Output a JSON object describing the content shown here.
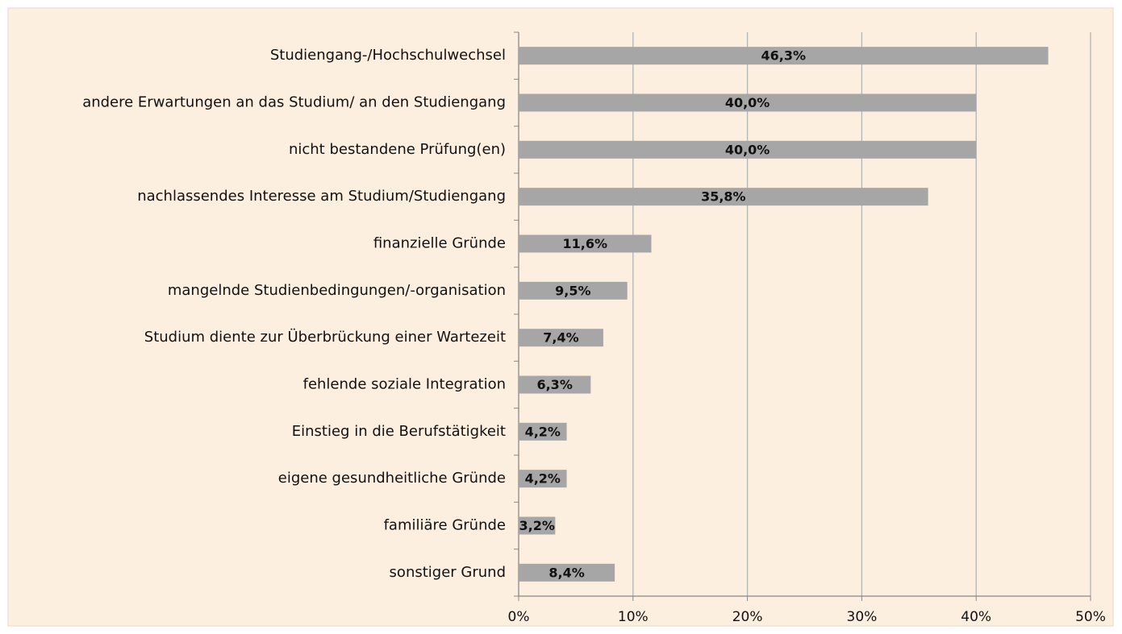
{
  "chart_data": {
    "type": "bar",
    "orientation": "horizontal",
    "categories": [
      "Studiengang-/Hochschulwechsel",
      "andere Erwartungen an das Studium/ an den Studiengang",
      "nicht bestandene Prüfung(en)",
      "nachlassendes Interesse am Studium/Studiengang",
      "finanzielle Gründe",
      "mangelnde Studienbedingungen/-organisation",
      "Studium diente zur Überbrückung einer Wartezeit",
      "fehlende soziale Integration",
      "Einstieg in die Berufstätigkeit",
      "eigene gesundheitliche Gründe",
      "familiäre Gründe",
      "sonstiger Grund"
    ],
    "values": [
      46.3,
      40.0,
      40.0,
      35.8,
      11.6,
      9.5,
      7.4,
      6.3,
      4.2,
      4.2,
      3.2,
      8.4
    ],
    "value_labels": [
      "46,3%",
      "40,0%",
      "40,0%",
      "35,8%",
      "11,6%",
      "9,5%",
      "7,4%",
      "6,3%",
      "4,2%",
      "4,2%",
      "3,2%",
      "8,4%"
    ],
    "color": "#a6a6a6",
    "xlim": [
      0,
      50
    ],
    "xticks": [
      {
        "value": 0,
        "label": "0%"
      },
      {
        "value": 10,
        "label": "10%"
      },
      {
        "value": 20,
        "label": "20%"
      },
      {
        "value": 30,
        "label": "30%"
      },
      {
        "value": 40,
        "label": "40%"
      },
      {
        "value": 50,
        "label": "50%"
      }
    ],
    "grid": true
  }
}
